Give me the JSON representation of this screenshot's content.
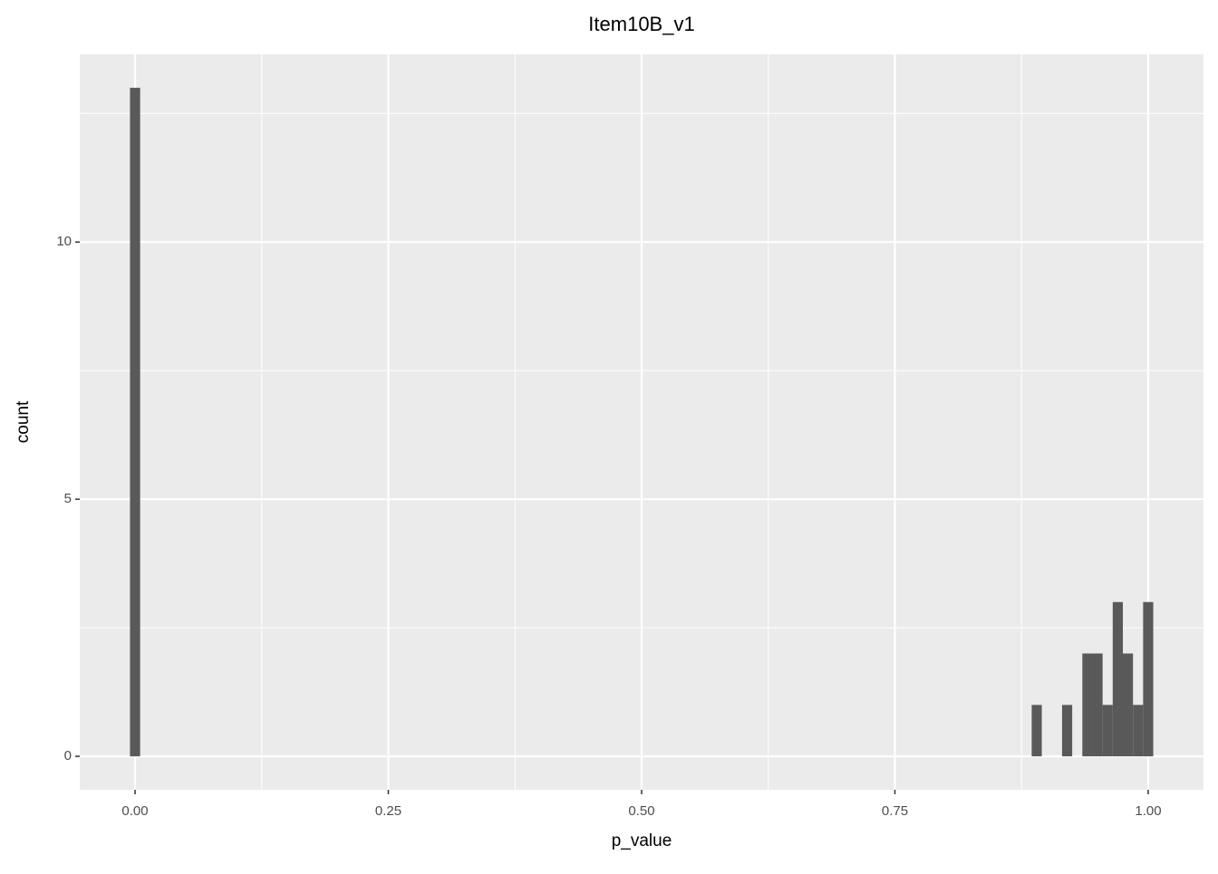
{
  "chart_data": {
    "type": "histogram",
    "title": "Item10B_v1",
    "x_label": "p_value",
    "y_label": "count",
    "bins": [
      -0.005,
      0.005,
      0.015,
      0.025,
      0.035,
      0.045,
      0.055,
      0.065,
      0.075,
      0.085,
      0.095,
      0.105,
      0.115,
      0.125,
      0.135,
      0.145,
      0.155,
      0.165,
      0.175,
      0.185,
      0.195,
      0.205,
      0.215,
      0.225,
      0.235,
      0.245,
      0.255,
      0.265,
      0.275,
      0.285,
      0.295,
      0.305,
      0.315,
      0.325,
      0.335,
      0.345,
      0.355,
      0.365,
      0.375,
      0.385,
      0.395,
      0.405,
      0.415,
      0.425,
      0.435,
      0.445,
      0.455,
      0.465,
      0.475,
      0.485,
      0.495,
      0.505,
      0.515,
      0.525,
      0.535,
      0.545,
      0.555,
      0.565,
      0.575,
      0.585,
      0.595,
      0.605,
      0.615,
      0.625,
      0.635,
      0.645,
      0.655,
      0.665,
      0.675,
      0.685,
      0.695,
      0.705,
      0.715,
      0.725,
      0.735,
      0.745,
      0.755,
      0.765,
      0.775,
      0.785,
      0.795,
      0.805,
      0.815,
      0.825,
      0.835,
      0.845,
      0.855,
      0.865,
      0.875,
      0.885,
      0.895,
      0.905,
      0.915,
      0.925,
      0.935,
      0.945,
      0.955,
      0.965,
      0.975,
      0.985,
      0.995,
      1.005
    ],
    "values": [
      13,
      0,
      0,
      0,
      0,
      0,
      0,
      0,
      0,
      0,
      0,
      0,
      0,
      0,
      0,
      0,
      0,
      0,
      0,
      0,
      0,
      0,
      0,
      0,
      0,
      0,
      0,
      0,
      0,
      0,
      0,
      0,
      0,
      0,
      0,
      0,
      0,
      0,
      0,
      0,
      0,
      0,
      0,
      0,
      0,
      0,
      0,
      0,
      0,
      0,
      0,
      0,
      0,
      0,
      0,
      0,
      0,
      0,
      0,
      0,
      0,
      0,
      0,
      0,
      0,
      0,
      0,
      0,
      0,
      0,
      0,
      0,
      0,
      0,
      0,
      0,
      0,
      0,
      0,
      0,
      0,
      0,
      0,
      0,
      0,
      0,
      0,
      0,
      0,
      1,
      0,
      0,
      1,
      0,
      2,
      2,
      1,
      3,
      2,
      1,
      3
    ],
    "color": "#595959",
    "xlim": [
      -0.0546,
      1.0546
    ],
    "ylim": [
      -0.65,
      13.65
    ],
    "xticks": [
      {
        "value": 0,
        "label": "0.00"
      },
      {
        "value": 0.25,
        "label": "0.25"
      },
      {
        "value": 0.5,
        "label": "0.50"
      },
      {
        "value": 0.75,
        "label": "0.75"
      },
      {
        "value": 1,
        "label": "1.00"
      }
    ],
    "yticks": [
      0,
      5,
      10
    ],
    "x_minor_breaks": [
      0.125,
      0.375,
      0.625,
      0.875
    ],
    "y_minor_breaks": [
      2.5,
      7.5,
      12.5
    ],
    "grid": true
  }
}
